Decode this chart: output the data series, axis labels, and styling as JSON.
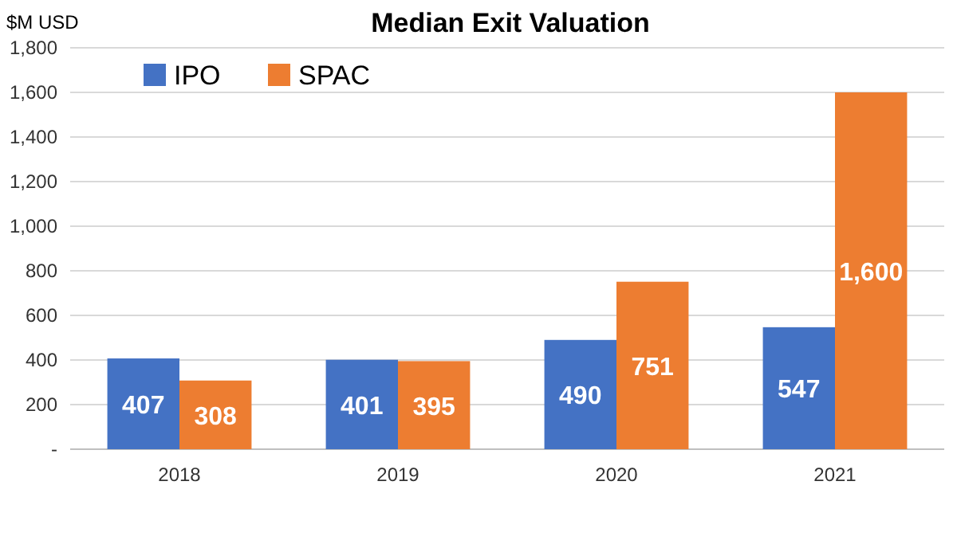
{
  "chart_data": {
    "type": "bar",
    "title": "Median Exit Valuation",
    "ylabel": "$M USD",
    "categories": [
      "2018",
      "2019",
      "2020",
      "2021"
    ],
    "series": [
      {
        "name": "IPO",
        "color": "#4472c4",
        "values": [
          407,
          401,
          490,
          547
        ],
        "value_labels": [
          "407",
          "401",
          "490",
          "547"
        ]
      },
      {
        "name": "SPAC",
        "color": "#ed7d31",
        "values": [
          308,
          395,
          751,
          1600
        ],
        "value_labels": [
          "308",
          "395",
          "751",
          "1,600"
        ]
      }
    ],
    "ylim": [
      0,
      1800
    ],
    "yticks": [
      {
        "value": 0,
        "label": "-"
      },
      {
        "value": 200,
        "label": "200"
      },
      {
        "value": 400,
        "label": "400"
      },
      {
        "value": 600,
        "label": "600"
      },
      {
        "value": 800,
        "label": "800"
      },
      {
        "value": 1000,
        "label": "1,000"
      },
      {
        "value": 1200,
        "label": "1,200"
      },
      {
        "value": 1400,
        "label": "1,400"
      },
      {
        "value": 1600,
        "label": "1,600"
      },
      {
        "value": 1800,
        "label": "1,800"
      }
    ],
    "grid": "y",
    "legend": "top left"
  }
}
